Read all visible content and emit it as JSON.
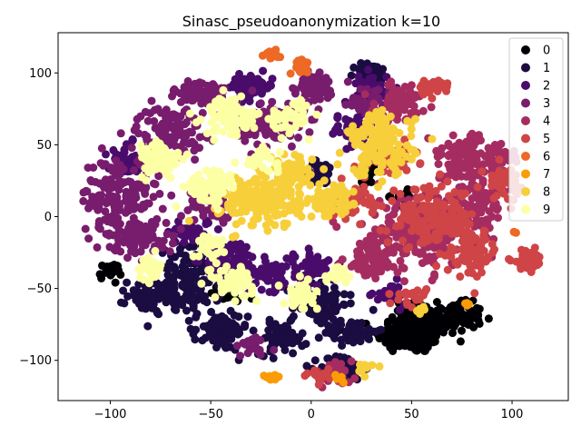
{
  "chart_data": {
    "type": "scatter",
    "title": "Sinasc_pseudoanonymization k=10",
    "xlabel": "",
    "ylabel": "",
    "xlim": [
      -126,
      128
    ],
    "ylim": [
      -128,
      128
    ],
    "x_ticks": [
      -100,
      -50,
      0,
      50,
      100
    ],
    "x_tick_labels": [
      "−100",
      "−50",
      "0",
      "50",
      "100"
    ],
    "y_ticks": [
      -100,
      -50,
      0,
      50,
      100
    ],
    "y_tick_labels": [
      "−100",
      "−50",
      "0",
      "50",
      "100"
    ],
    "grid": false,
    "legend": "top-right",
    "series": [
      {
        "name": "0",
        "color": "#000004",
        "clusters": [
          {
            "x": 50,
            "y": -82,
            "rx": 16,
            "ry": 12,
            "n": 160
          },
          {
            "x": 70,
            "y": -70,
            "rx": 14,
            "ry": 9,
            "n": 120
          },
          {
            "x": 20,
            "y": -108,
            "rx": 5,
            "ry": 3,
            "n": 15
          },
          {
            "x": 52,
            "y": -68,
            "rx": 10,
            "ry": 8,
            "n": 60
          },
          {
            "x": -100,
            "y": -38,
            "rx": 5,
            "ry": 5,
            "n": 30
          },
          {
            "x": -42,
            "y": -52,
            "rx": 8,
            "ry": 8,
            "n": 30
          },
          {
            "x": 45,
            "y": 15,
            "rx": 5,
            "ry": 6,
            "n": 15
          },
          {
            "x": 28,
            "y": 28,
            "rx": 4,
            "ry": 5,
            "n": 12
          }
        ]
      },
      {
        "name": "1",
        "color": "#1b0c41",
        "clusters": [
          {
            "x": -60,
            "y": -45,
            "rx": 14,
            "ry": 22,
            "n": 140
          },
          {
            "x": -78,
            "y": -55,
            "rx": 12,
            "ry": 10,
            "n": 70
          },
          {
            "x": -45,
            "y": -80,
            "rx": 12,
            "ry": 12,
            "n": 80
          },
          {
            "x": -15,
            "y": -85,
            "rx": 10,
            "ry": 10,
            "n": 70
          },
          {
            "x": 5,
            "y": -60,
            "rx": 12,
            "ry": 16,
            "n": 90
          },
          {
            "x": 20,
            "y": -80,
            "rx": 12,
            "ry": 8,
            "n": 60
          },
          {
            "x": 15,
            "y": -105,
            "rx": 10,
            "ry": 8,
            "n": 50
          },
          {
            "x": 30,
            "y": 100,
            "rx": 8,
            "ry": 6,
            "n": 40
          },
          {
            "x": 5,
            "y": 30,
            "rx": 8,
            "ry": 8,
            "n": 30
          }
        ]
      },
      {
        "name": "2",
        "color": "#4a0c6b",
        "clusters": [
          {
            "x": -40,
            "y": -30,
            "rx": 12,
            "ry": 12,
            "n": 90
          },
          {
            "x": -20,
            "y": -40,
            "rx": 10,
            "ry": 10,
            "n": 60
          },
          {
            "x": 0,
            "y": -35,
            "rx": 8,
            "ry": 10,
            "n": 50
          },
          {
            "x": -30,
            "y": 90,
            "rx": 10,
            "ry": 8,
            "n": 60
          },
          {
            "x": -90,
            "y": 40,
            "rx": 10,
            "ry": 10,
            "n": 50
          },
          {
            "x": 20,
            "y": 60,
            "rx": 10,
            "ry": 10,
            "n": 50
          },
          {
            "x": -60,
            "y": -10,
            "rx": 10,
            "ry": 8,
            "n": 40
          },
          {
            "x": 40,
            "y": -55,
            "rx": 8,
            "ry": 8,
            "n": 30
          },
          {
            "x": 30,
            "y": 90,
            "rx": 8,
            "ry": 10,
            "n": 40
          }
        ]
      },
      {
        "name": "3",
        "color": "#781c6d",
        "clusters": [
          {
            "x": -95,
            "y": 15,
            "rx": 18,
            "ry": 25,
            "n": 160
          },
          {
            "x": -70,
            "y": 60,
            "rx": 15,
            "ry": 15,
            "n": 110
          },
          {
            "x": -55,
            "y": 85,
            "rx": 12,
            "ry": 10,
            "n": 70
          },
          {
            "x": -20,
            "y": 65,
            "rx": 15,
            "ry": 15,
            "n": 100
          },
          {
            "x": -85,
            "y": -15,
            "rx": 15,
            "ry": 10,
            "n": 80
          },
          {
            "x": 0,
            "y": 90,
            "rx": 12,
            "ry": 12,
            "n": 70
          },
          {
            "x": -50,
            "y": 10,
            "rx": 10,
            "ry": 10,
            "n": 50
          },
          {
            "x": 30,
            "y": 80,
            "rx": 10,
            "ry": 10,
            "n": 50
          },
          {
            "x": -30,
            "y": -90,
            "rx": 8,
            "ry": 6,
            "n": 30
          }
        ]
      },
      {
        "name": "4",
        "color": "#a52c60",
        "clusters": [
          {
            "x": 55,
            "y": -10,
            "rx": 25,
            "ry": 25,
            "n": 220
          },
          {
            "x": 75,
            "y": 40,
            "rx": 15,
            "ry": 15,
            "n": 110
          },
          {
            "x": 45,
            "y": 80,
            "rx": 12,
            "ry": 12,
            "n": 70
          },
          {
            "x": 30,
            "y": -30,
            "rx": 12,
            "ry": 15,
            "n": 80
          },
          {
            "x": 85,
            "y": 10,
            "rx": 12,
            "ry": 15,
            "n": 80
          },
          {
            "x": 10,
            "y": -110,
            "rx": 10,
            "ry": 6,
            "n": 40
          },
          {
            "x": 95,
            "y": 40,
            "rx": 8,
            "ry": 10,
            "n": 40
          }
        ]
      },
      {
        "name": "5",
        "color": "#cf4446",
        "clusters": [
          {
            "x": 60,
            "y": 0,
            "rx": 20,
            "ry": 18,
            "n": 150
          },
          {
            "x": 80,
            "y": -25,
            "rx": 12,
            "ry": 15,
            "n": 80
          },
          {
            "x": 108,
            "y": -30,
            "rx": 7,
            "ry": 6,
            "n": 50
          },
          {
            "x": 40,
            "y": 40,
            "rx": 10,
            "ry": 10,
            "n": 50
          },
          {
            "x": 20,
            "y": 10,
            "rx": 10,
            "ry": 10,
            "n": 50
          },
          {
            "x": 95,
            "y": 25,
            "rx": 8,
            "ry": 10,
            "n": 40
          },
          {
            "x": 60,
            "y": 90,
            "rx": 8,
            "ry": 6,
            "n": 30
          },
          {
            "x": 5,
            "y": -110,
            "rx": 6,
            "ry": 4,
            "n": 20
          },
          {
            "x": 50,
            "y": -55,
            "rx": 8,
            "ry": 6,
            "n": 20
          }
        ]
      },
      {
        "name": "6",
        "color": "#ed6925",
        "clusters": [
          {
            "x": -5,
            "y": 105,
            "rx": 4,
            "ry": 4,
            "n": 30
          },
          {
            "x": -20,
            "y": 113,
            "rx": 4,
            "ry": 3,
            "n": 20
          },
          {
            "x": 100,
            "y": -10,
            "rx": 2,
            "ry": 2,
            "n": 3
          }
        ]
      },
      {
        "name": "7",
        "color": "#fb9b06",
        "clusters": [
          {
            "x": -20,
            "y": -112,
            "rx": 4,
            "ry": 2,
            "n": 15
          },
          {
            "x": 15,
            "y": -112,
            "rx": 3,
            "ry": 2,
            "n": 8
          },
          {
            "x": 77,
            "y": -60,
            "rx": 2,
            "ry": 2,
            "n": 4
          }
        ]
      },
      {
        "name": "8",
        "color": "#f7cf3a",
        "clusters": [
          {
            "x": -25,
            "y": 10,
            "rx": 18,
            "ry": 16,
            "n": 200
          },
          {
            "x": 35,
            "y": 50,
            "rx": 15,
            "ry": 20,
            "n": 150
          },
          {
            "x": 10,
            "y": 10,
            "rx": 10,
            "ry": 10,
            "n": 60
          },
          {
            "x": -10,
            "y": 30,
            "rx": 10,
            "ry": 10,
            "n": 60
          },
          {
            "x": 25,
            "y": -105,
            "rx": 5,
            "ry": 4,
            "n": 15
          },
          {
            "x": 55,
            "y": -65,
            "rx": 4,
            "ry": 3,
            "n": 8
          }
        ]
      },
      {
        "name": "9",
        "color": "#fcffa4",
        "clusters": [
          {
            "x": -40,
            "y": 70,
            "rx": 12,
            "ry": 12,
            "n": 80
          },
          {
            "x": -75,
            "y": 40,
            "rx": 10,
            "ry": 12,
            "n": 70
          },
          {
            "x": -50,
            "y": 20,
            "rx": 12,
            "ry": 12,
            "n": 70
          },
          {
            "x": -40,
            "y": -45,
            "rx": 10,
            "ry": 10,
            "n": 60
          },
          {
            "x": -5,
            "y": -55,
            "rx": 8,
            "ry": 8,
            "n": 40
          },
          {
            "x": -80,
            "y": -35,
            "rx": 6,
            "ry": 8,
            "n": 30
          },
          {
            "x": -10,
            "y": 70,
            "rx": 10,
            "ry": 10,
            "n": 50
          },
          {
            "x": 15,
            "y": -40,
            "rx": 6,
            "ry": 6,
            "n": 25
          },
          {
            "x": -50,
            "y": -20,
            "rx": 8,
            "ry": 8,
            "n": 30
          },
          {
            "x": -25,
            "y": 40,
            "rx": 8,
            "ry": 6,
            "n": 30
          }
        ]
      }
    ]
  }
}
